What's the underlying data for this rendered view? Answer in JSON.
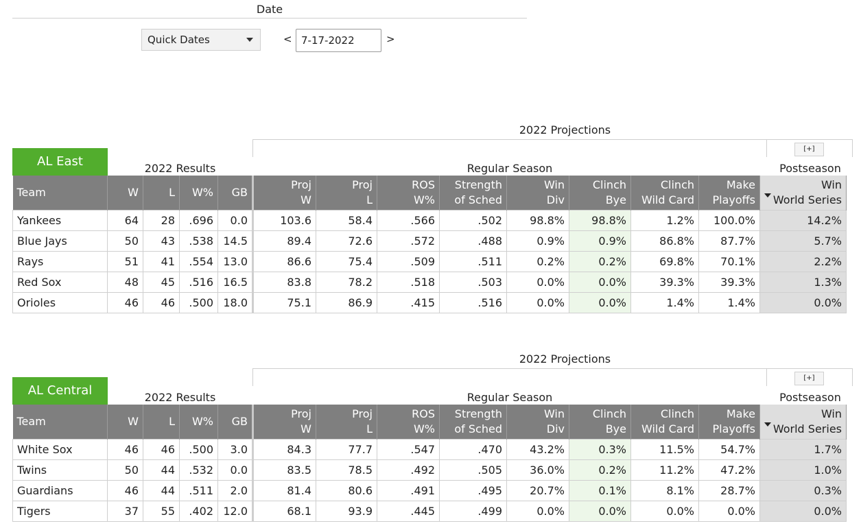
{
  "date_label": "Date",
  "quick_dates": "Quick Dates",
  "prev": "<",
  "next": ">",
  "date_value": "7-17-2022",
  "sections": [
    {
      "division": "AL East",
      "projections_label": "2022 Projections",
      "expand": "[+]",
      "results_label": "2022 Results",
      "regular_label": "Regular Season",
      "post_label": "Postseason",
      "headers": {
        "team": "Team",
        "w": "W",
        "l": "L",
        "wpct": "W%",
        "gb": "GB",
        "projw_1": "Proj",
        "projw_2": "W",
        "projl_1": "Proj",
        "projl_2": "L",
        "ros_1": "ROS",
        "ros_2": "W%",
        "sos_1": "Strength",
        "sos_2": "of Sched",
        "windiv_1": "Win",
        "windiv_2": "Div",
        "bye_1": "Clinch",
        "bye_2": "Bye",
        "wc_1": "Clinch",
        "wc_2": "Wild Card",
        "po_1": "Make",
        "po_2": "Playoffs",
        "ws_1": "Win",
        "ws_2": "World Series"
      },
      "rows": [
        {
          "team": "Yankees",
          "w": "64",
          "l": "28",
          "wpct": ".696",
          "gb": "0.0",
          "projw": "103.6",
          "projl": "58.4",
          "ros": ".566",
          "sos": ".502",
          "windiv": "98.8%",
          "bye": "98.8%",
          "wc": "1.2%",
          "po": "100.0%",
          "ws": "14.2%"
        },
        {
          "team": "Blue Jays",
          "w": "50",
          "l": "43",
          "wpct": ".538",
          "gb": "14.5",
          "projw": "89.4",
          "projl": "72.6",
          "ros": ".572",
          "sos": ".488",
          "windiv": "0.9%",
          "bye": "0.9%",
          "wc": "86.8%",
          "po": "87.7%",
          "ws": "5.7%"
        },
        {
          "team": "Rays",
          "w": "51",
          "l": "41",
          "wpct": ".554",
          "gb": "13.0",
          "projw": "86.6",
          "projl": "75.4",
          "ros": ".509",
          "sos": ".511",
          "windiv": "0.2%",
          "bye": "0.2%",
          "wc": "69.8%",
          "po": "70.1%",
          "ws": "2.2%"
        },
        {
          "team": "Red Sox",
          "w": "48",
          "l": "45",
          "wpct": ".516",
          "gb": "16.5",
          "projw": "83.8",
          "projl": "78.2",
          "ros": ".518",
          "sos": ".503",
          "windiv": "0.0%",
          "bye": "0.0%",
          "wc": "39.3%",
          "po": "39.3%",
          "ws": "1.3%"
        },
        {
          "team": "Orioles",
          "w": "46",
          "l": "46",
          "wpct": ".500",
          "gb": "18.0",
          "projw": "75.1",
          "projl": "86.9",
          "ros": ".415",
          "sos": ".516",
          "windiv": "0.0%",
          "bye": "0.0%",
          "wc": "1.4%",
          "po": "1.4%",
          "ws": "0.0%"
        }
      ]
    },
    {
      "division": "AL Central",
      "projections_label": "2022 Projections",
      "expand": "[+]",
      "results_label": "2022 Results",
      "regular_label": "Regular Season",
      "post_label": "Postseason",
      "headers": {
        "team": "Team",
        "w": "W",
        "l": "L",
        "wpct": "W%",
        "gb": "GB",
        "projw_1": "Proj",
        "projw_2": "W",
        "projl_1": "Proj",
        "projl_2": "L",
        "ros_1": "ROS",
        "ros_2": "W%",
        "sos_1": "Strength",
        "sos_2": "of Sched",
        "windiv_1": "Win",
        "windiv_2": "Div",
        "bye_1": "Clinch",
        "bye_2": "Bye",
        "wc_1": "Clinch",
        "wc_2": "Wild Card",
        "po_1": "Make",
        "po_2": "Playoffs",
        "ws_1": "Win",
        "ws_2": "World Series"
      },
      "rows": [
        {
          "team": "White Sox",
          "w": "46",
          "l": "46",
          "wpct": ".500",
          "gb": "3.0",
          "projw": "84.3",
          "projl": "77.7",
          "ros": ".547",
          "sos": ".470",
          "windiv": "43.2%",
          "bye": "0.3%",
          "wc": "11.5%",
          "po": "54.7%",
          "ws": "1.7%"
        },
        {
          "team": "Twins",
          "w": "50",
          "l": "44",
          "wpct": ".532",
          "gb": "0.0",
          "projw": "83.5",
          "projl": "78.5",
          "ros": ".492",
          "sos": ".505",
          "windiv": "36.0%",
          "bye": "0.2%",
          "wc": "11.2%",
          "po": "47.2%",
          "ws": "1.0%"
        },
        {
          "team": "Guardians",
          "w": "46",
          "l": "44",
          "wpct": ".511",
          "gb": "2.0",
          "projw": "81.4",
          "projl": "80.6",
          "ros": ".491",
          "sos": ".495",
          "windiv": "20.7%",
          "bye": "0.1%",
          "wc": "8.1%",
          "po": "28.7%",
          "ws": "0.3%"
        },
        {
          "team": "Tigers",
          "w": "37",
          "l": "55",
          "wpct": ".402",
          "gb": "12.0",
          "projw": "68.1",
          "projl": "93.9",
          "ros": ".445",
          "sos": ".499",
          "windiv": "0.0%",
          "bye": "0.0%",
          "wc": "0.0%",
          "po": "0.0%",
          "ws": "0.0%"
        }
      ]
    }
  ]
}
